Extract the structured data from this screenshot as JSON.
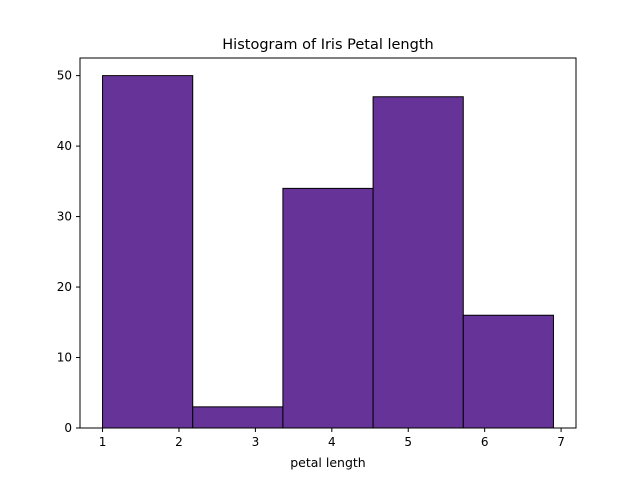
{
  "chart_data": {
    "type": "bar",
    "title": "Histogram of Iris Petal length",
    "xlabel": "petal length",
    "ylabel": "",
    "bins": [
      {
        "x0": 1.0,
        "x1": 2.18,
        "count": 50
      },
      {
        "x0": 2.18,
        "x1": 3.36,
        "count": 3
      },
      {
        "x0": 3.36,
        "x1": 4.54,
        "count": 34
      },
      {
        "x0": 4.54,
        "x1": 5.72,
        "count": 47
      },
      {
        "x0": 5.72,
        "x1": 6.9,
        "count": 16
      }
    ],
    "xlim": [
      0.705,
      7.195
    ],
    "ylim": [
      0,
      52.5
    ],
    "xticks": [
      1,
      2,
      3,
      4,
      5,
      6,
      7
    ],
    "xtick_labels": [
      "1",
      "2",
      "3",
      "4",
      "5",
      "6",
      "7"
    ],
    "yticks": [
      0,
      10,
      20,
      30,
      40,
      50
    ],
    "ytick_labels": [
      "0",
      "10",
      "20",
      "30",
      "40",
      "50"
    ],
    "grid": false,
    "legend": "none",
    "colors": {
      "bar_fill": "#663399",
      "bar_edge": "#000000",
      "axes": "#000000"
    }
  }
}
